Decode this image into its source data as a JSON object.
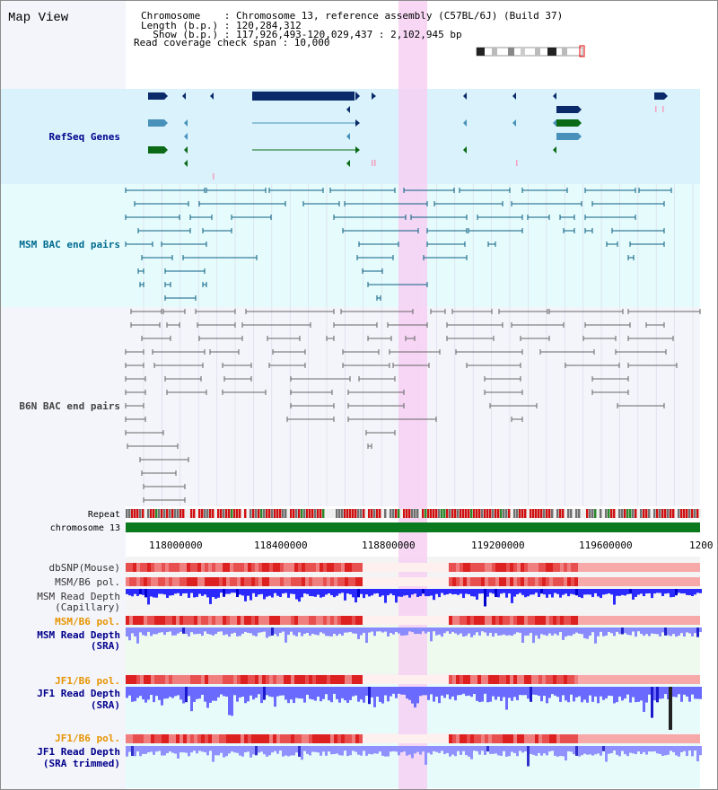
{
  "title": "Map View",
  "info": {
    "chromosome_line": "Chromosome    : Chromosome 13, reference assembly (C57BL/6J) (Build 37)",
    "length_line": "Length (b.p.) : 120,284,312",
    "show_line": "  Show (b.p.) : 117,926,493-120,029,437 : 2,102,945 bp",
    "coverage_line": "Read coverage check span : 10,000"
  },
  "tracks": {
    "refseq": "RefSeq Genes",
    "msm_bac": "MSM BAC end pairs",
    "b6n_bac": "B6N BAC end pairs",
    "repeat": "Repeat",
    "chromosome": "chromosome 13",
    "dbsnp": "dbSNP(Mouse)",
    "msm_b6_pol_1": "MSM/B6 pol.",
    "msm_read_depth_cap_1": "MSM Read Depth",
    "msm_read_depth_cap_2": "(Capillary)",
    "msm_b6_pol_2": "MSM/B6 pol.",
    "msm_read_depth_sra_1": "MSM Read Depth",
    "msm_read_depth_sra_2": "(SRA)",
    "jf1_b6_pol_1": "JF1/B6 pol.",
    "jf1_read_depth_sra_1": "JF1 Read Depth",
    "jf1_read_depth_sra_2": "(SRA)",
    "jf1_b6_pol_2": "JF1/B6 pol.",
    "jf1_read_depth_trim_1": "JF1 Read Depth",
    "jf1_read_depth_trim_2": "(SRA trimmed)"
  },
  "axis": {
    "ticks": [
      "118000000",
      "118400000",
      "118800000",
      "119200000",
      "119600000",
      "1200"
    ]
  },
  "colors": {
    "navy_label": "#00008b",
    "teal_label": "#006b8f",
    "orange_label": "#e69500",
    "refseq_bg": "#d9f2fc",
    "msm_bg": "#e6fbfc",
    "b6n_bg": "#f4f4fb",
    "highlight": "#f6d0f2",
    "gene_navy": "#0a2a6a",
    "gene_teal": "#4891ba",
    "gene_green": "#0a6a15",
    "chromosome": "#0b7a1e",
    "depth_blue": "#1a1aee",
    "depth_light": "#6a78ff"
  }
}
